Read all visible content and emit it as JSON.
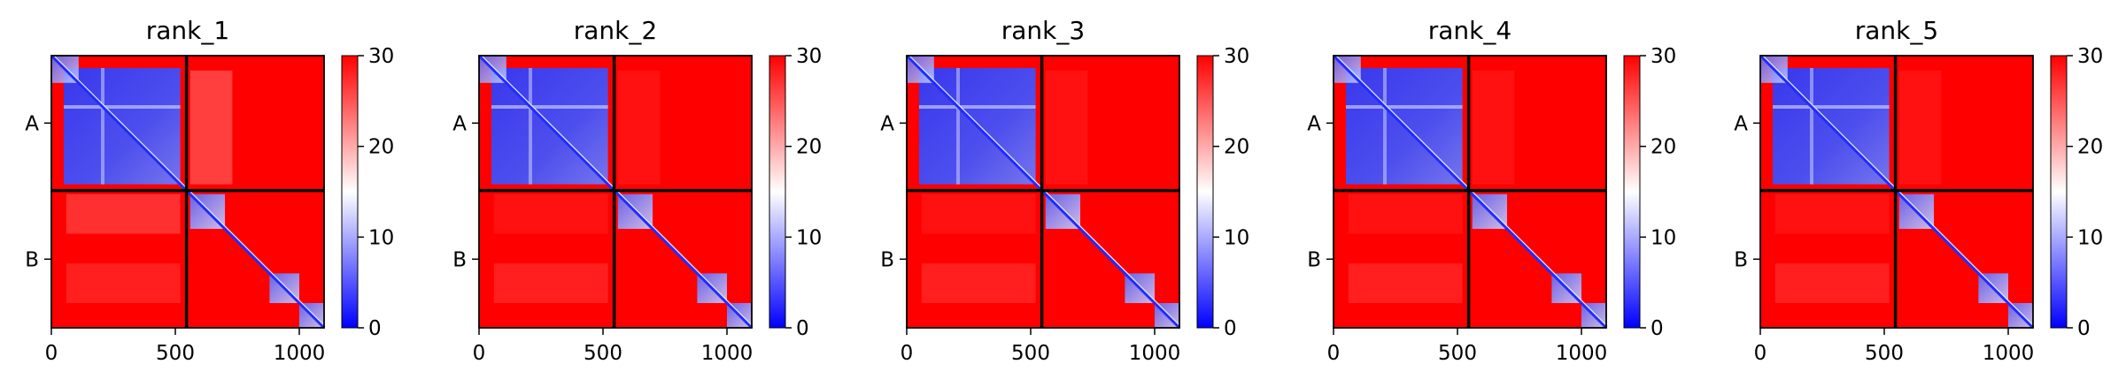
{
  "chart_data": {
    "type": "heatmap",
    "title": "",
    "colormap": {
      "low": "#0000ff",
      "mid": "#ffffff",
      "high": "#ff0000",
      "vmin": 0,
      "vmax": 30
    },
    "colorbar_ticks": [
      "0",
      "10",
      "20",
      "30"
    ],
    "x_ticks": [
      "0",
      "500",
      "1000"
    ],
    "x_tick_values": [
      0,
      500,
      1000
    ],
    "x_range": [
      0,
      1100
    ],
    "y_chains": [
      {
        "label": "A",
        "range": [
          0,
          545
        ]
      },
      {
        "label": "B",
        "range": [
          545,
          1100
        ]
      }
    ],
    "chain_boundary": 545,
    "panels": [
      {
        "title": "rank_1"
      },
      {
        "title": "rank_2"
      },
      {
        "title": "rank_3"
      },
      {
        "title": "rank_4"
      },
      {
        "title": "rank_5"
      }
    ]
  }
}
